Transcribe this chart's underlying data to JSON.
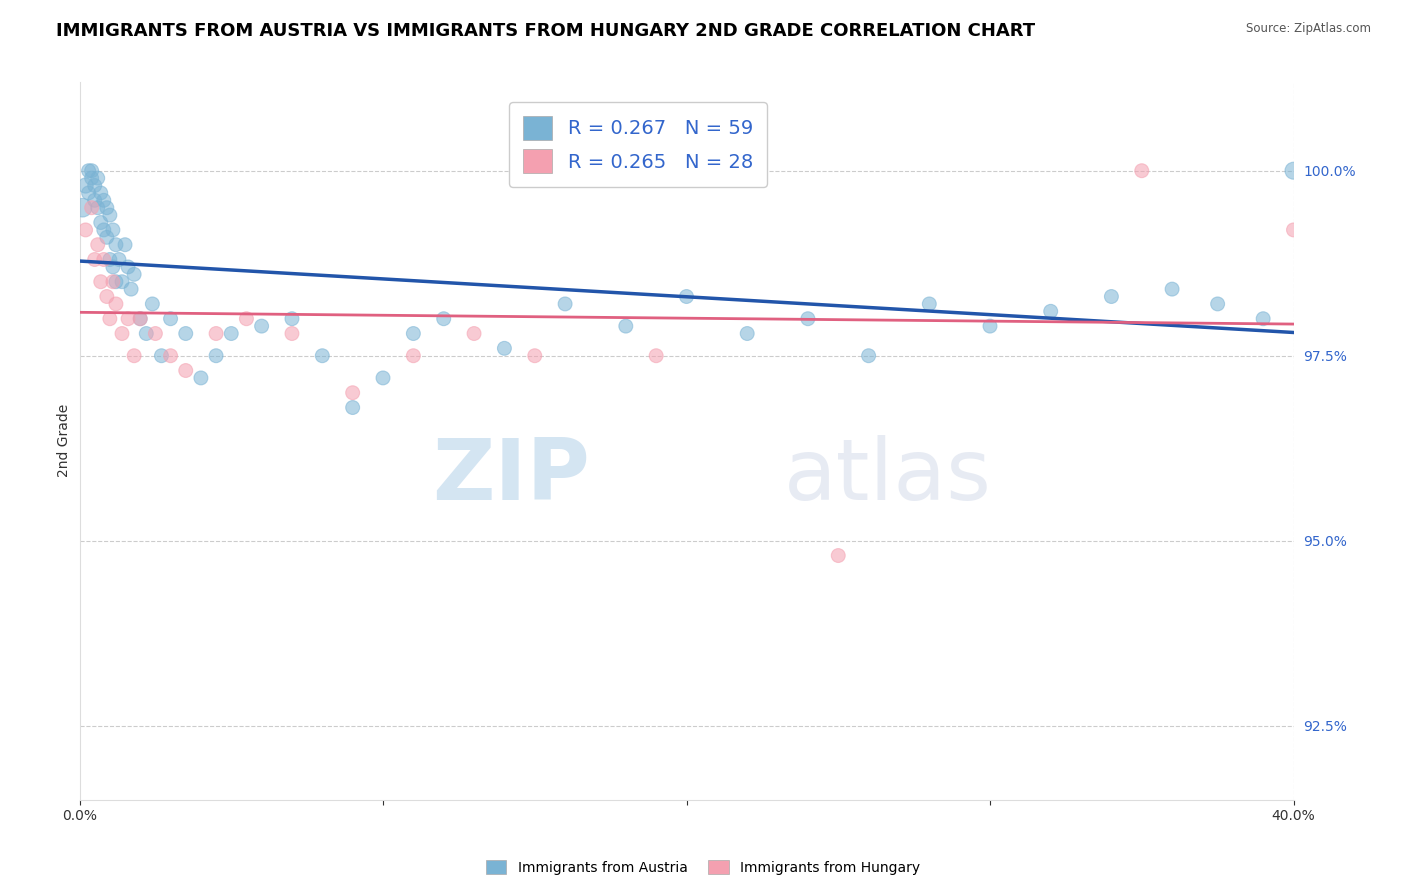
{
  "title": "IMMIGRANTS FROM AUSTRIA VS IMMIGRANTS FROM HUNGARY 2ND GRADE CORRELATION CHART",
  "source_text": "Source: ZipAtlas.com",
  "ylabel": "2nd Grade",
  "xlim": [
    0.0,
    40.0
  ],
  "ylim": [
    91.5,
    101.2
  ],
  "yticks": [
    92.5,
    95.0,
    97.5,
    100.0
  ],
  "xticks": [
    0.0,
    10.0,
    20.0,
    30.0,
    40.0
  ],
  "ytick_labels": [
    "92.5%",
    "95.0%",
    "97.5%",
    "100.0%"
  ],
  "austria_color": "#7ab3d4",
  "hungary_color": "#f4a0b0",
  "austria_line_color": "#2255aa",
  "hungary_line_color": "#e06080",
  "r_austria": 0.267,
  "n_austria": 59,
  "r_hungary": 0.265,
  "n_hungary": 28,
  "legend_color": "#3366cc",
  "austria_x": [
    0.1,
    0.2,
    0.3,
    0.3,
    0.4,
    0.4,
    0.5,
    0.5,
    0.6,
    0.6,
    0.7,
    0.7,
    0.8,
    0.8,
    0.9,
    0.9,
    1.0,
    1.0,
    1.1,
    1.1,
    1.2,
    1.2,
    1.3,
    1.4,
    1.5,
    1.6,
    1.7,
    1.8,
    2.0,
    2.2,
    2.4,
    2.7,
    3.0,
    3.5,
    4.0,
    4.5,
    5.0,
    6.0,
    7.0,
    8.0,
    9.0,
    10.0,
    11.0,
    12.0,
    14.0,
    16.0,
    18.0,
    20.0,
    22.0,
    24.0,
    26.0,
    28.0,
    30.0,
    32.0,
    34.0,
    36.0,
    37.5,
    39.0,
    40.0
  ],
  "austria_y": [
    99.5,
    99.8,
    100.0,
    99.7,
    99.9,
    100.0,
    99.6,
    99.8,
    99.5,
    99.9,
    99.3,
    99.7,
    99.2,
    99.6,
    99.1,
    99.5,
    98.8,
    99.4,
    98.7,
    99.2,
    98.5,
    99.0,
    98.8,
    98.5,
    99.0,
    98.7,
    98.4,
    98.6,
    98.0,
    97.8,
    98.2,
    97.5,
    98.0,
    97.8,
    97.2,
    97.5,
    97.8,
    97.9,
    98.0,
    97.5,
    96.8,
    97.2,
    97.8,
    98.0,
    97.6,
    98.2,
    97.9,
    98.3,
    97.8,
    98.0,
    97.5,
    98.2,
    97.9,
    98.1,
    98.3,
    98.4,
    98.2,
    98.0,
    100.0
  ],
  "austria_sizes": [
    180,
    120,
    100,
    100,
    100,
    100,
    100,
    100,
    100,
    100,
    100,
    100,
    100,
    100,
    100,
    100,
    100,
    100,
    100,
    100,
    100,
    100,
    100,
    100,
    100,
    100,
    100,
    100,
    100,
    100,
    100,
    100,
    100,
    100,
    100,
    100,
    100,
    100,
    100,
    100,
    100,
    100,
    100,
    100,
    100,
    100,
    100,
    100,
    100,
    100,
    100,
    100,
    100,
    100,
    100,
    100,
    100,
    100,
    150
  ],
  "hungary_x": [
    0.2,
    0.4,
    0.5,
    0.6,
    0.7,
    0.8,
    0.9,
    1.0,
    1.1,
    1.2,
    1.4,
    1.6,
    1.8,
    2.0,
    2.5,
    3.0,
    3.5,
    4.5,
    5.5,
    7.0,
    9.0,
    11.0,
    13.0,
    15.0,
    19.0,
    25.0,
    35.0,
    40.0
  ],
  "hungary_y": [
    99.2,
    99.5,
    98.8,
    99.0,
    98.5,
    98.8,
    98.3,
    98.0,
    98.5,
    98.2,
    97.8,
    98.0,
    97.5,
    98.0,
    97.8,
    97.5,
    97.3,
    97.8,
    98.0,
    97.8,
    97.0,
    97.5,
    97.8,
    97.5,
    97.5,
    94.8,
    100.0,
    99.2
  ],
  "hungary_sizes": [
    100,
    100,
    100,
    100,
    100,
    100,
    100,
    100,
    100,
    100,
    100,
    100,
    100,
    100,
    100,
    100,
    100,
    100,
    100,
    100,
    100,
    100,
    100,
    100,
    100,
    100,
    100,
    100
  ],
  "watermark_zip": "ZIP",
  "watermark_atlas": "atlas",
  "background_color": "#ffffff",
  "grid_color": "#cccccc",
  "title_fontsize": 13,
  "axis_label_fontsize": 10,
  "tick_fontsize": 10
}
